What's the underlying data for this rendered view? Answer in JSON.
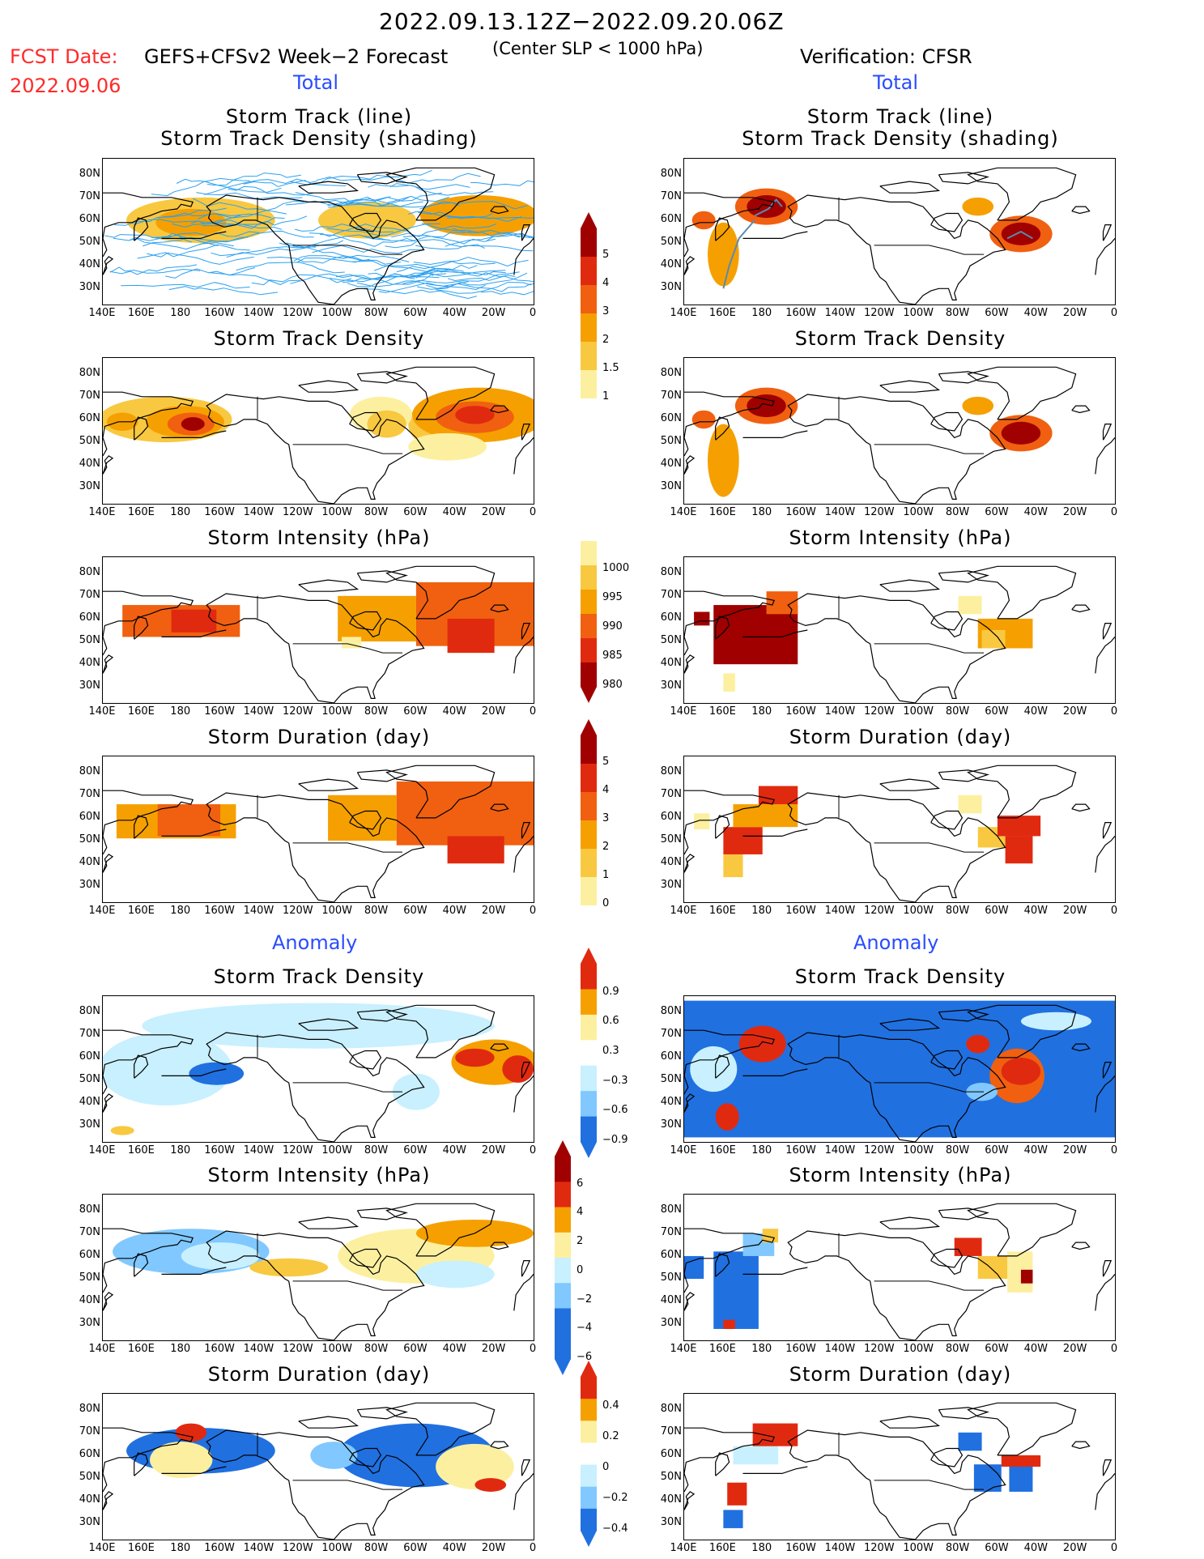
{
  "header": {
    "period": "2022.09.13.12Z−2022.09.20.06Z",
    "fcst_label": "FCST Date:",
    "fcst_date": "2022.09.06",
    "model": "GEFS+CFSv2 Week−2 Forecast",
    "slp_note": "(Center SLP < 1000 hPa)",
    "verification": "Verification: CFSR"
  },
  "sections": {
    "total_left": "Total",
    "total_right": "Total",
    "anomaly_left": "Anomaly",
    "anomaly_right": "Anomaly"
  },
  "panel_titles": {
    "track_line": "Storm Track (line)",
    "track_density_shading": "Storm Track Density (shading)",
    "track_density": "Storm Track Density",
    "intensity": "Storm Intensity (hPa)",
    "duration": "Storm Duration (day)"
  },
  "axes": {
    "lat_labels": [
      "80N",
      "70N",
      "60N",
      "50N",
      "40N",
      "30N"
    ],
    "lon_labels": [
      "140E",
      "160E",
      "180",
      "160W",
      "140W",
      "120W",
      "100W",
      "80W",
      "60W",
      "40W",
      "20W",
      "0"
    ]
  },
  "colorbars": {
    "density_total": [
      "5",
      "4",
      "3",
      "2",
      "1.5",
      "1"
    ],
    "intensity_total": [
      "1000",
      "995",
      "990",
      "985",
      "980"
    ],
    "duration_total": [
      "5",
      "4",
      "3",
      "2",
      "1",
      "0"
    ],
    "density_anomaly": [
      "0.9",
      "0.6",
      "0.3",
      "−0.3",
      "−0.6",
      "−0.9"
    ],
    "intensity_anomaly": [
      "6",
      "4",
      "2",
      "0",
      "−2",
      "−4",
      "−6"
    ],
    "duration_anomaly": [
      "0.4",
      "0.2",
      "0",
      "−0.2",
      "−0.4"
    ]
  },
  "colors": {
    "dark_red": "#a00000",
    "red": "#e02a10",
    "orange_red": "#f06010",
    "orange": "#f5a000",
    "light_orange": "#f8c840",
    "pale_yellow": "#fcf0a0",
    "pale_blue": "#c8f0ff",
    "light_blue": "#80c8ff",
    "blue": "#2070e0",
    "track_blue": "#2aa0f0"
  }
}
